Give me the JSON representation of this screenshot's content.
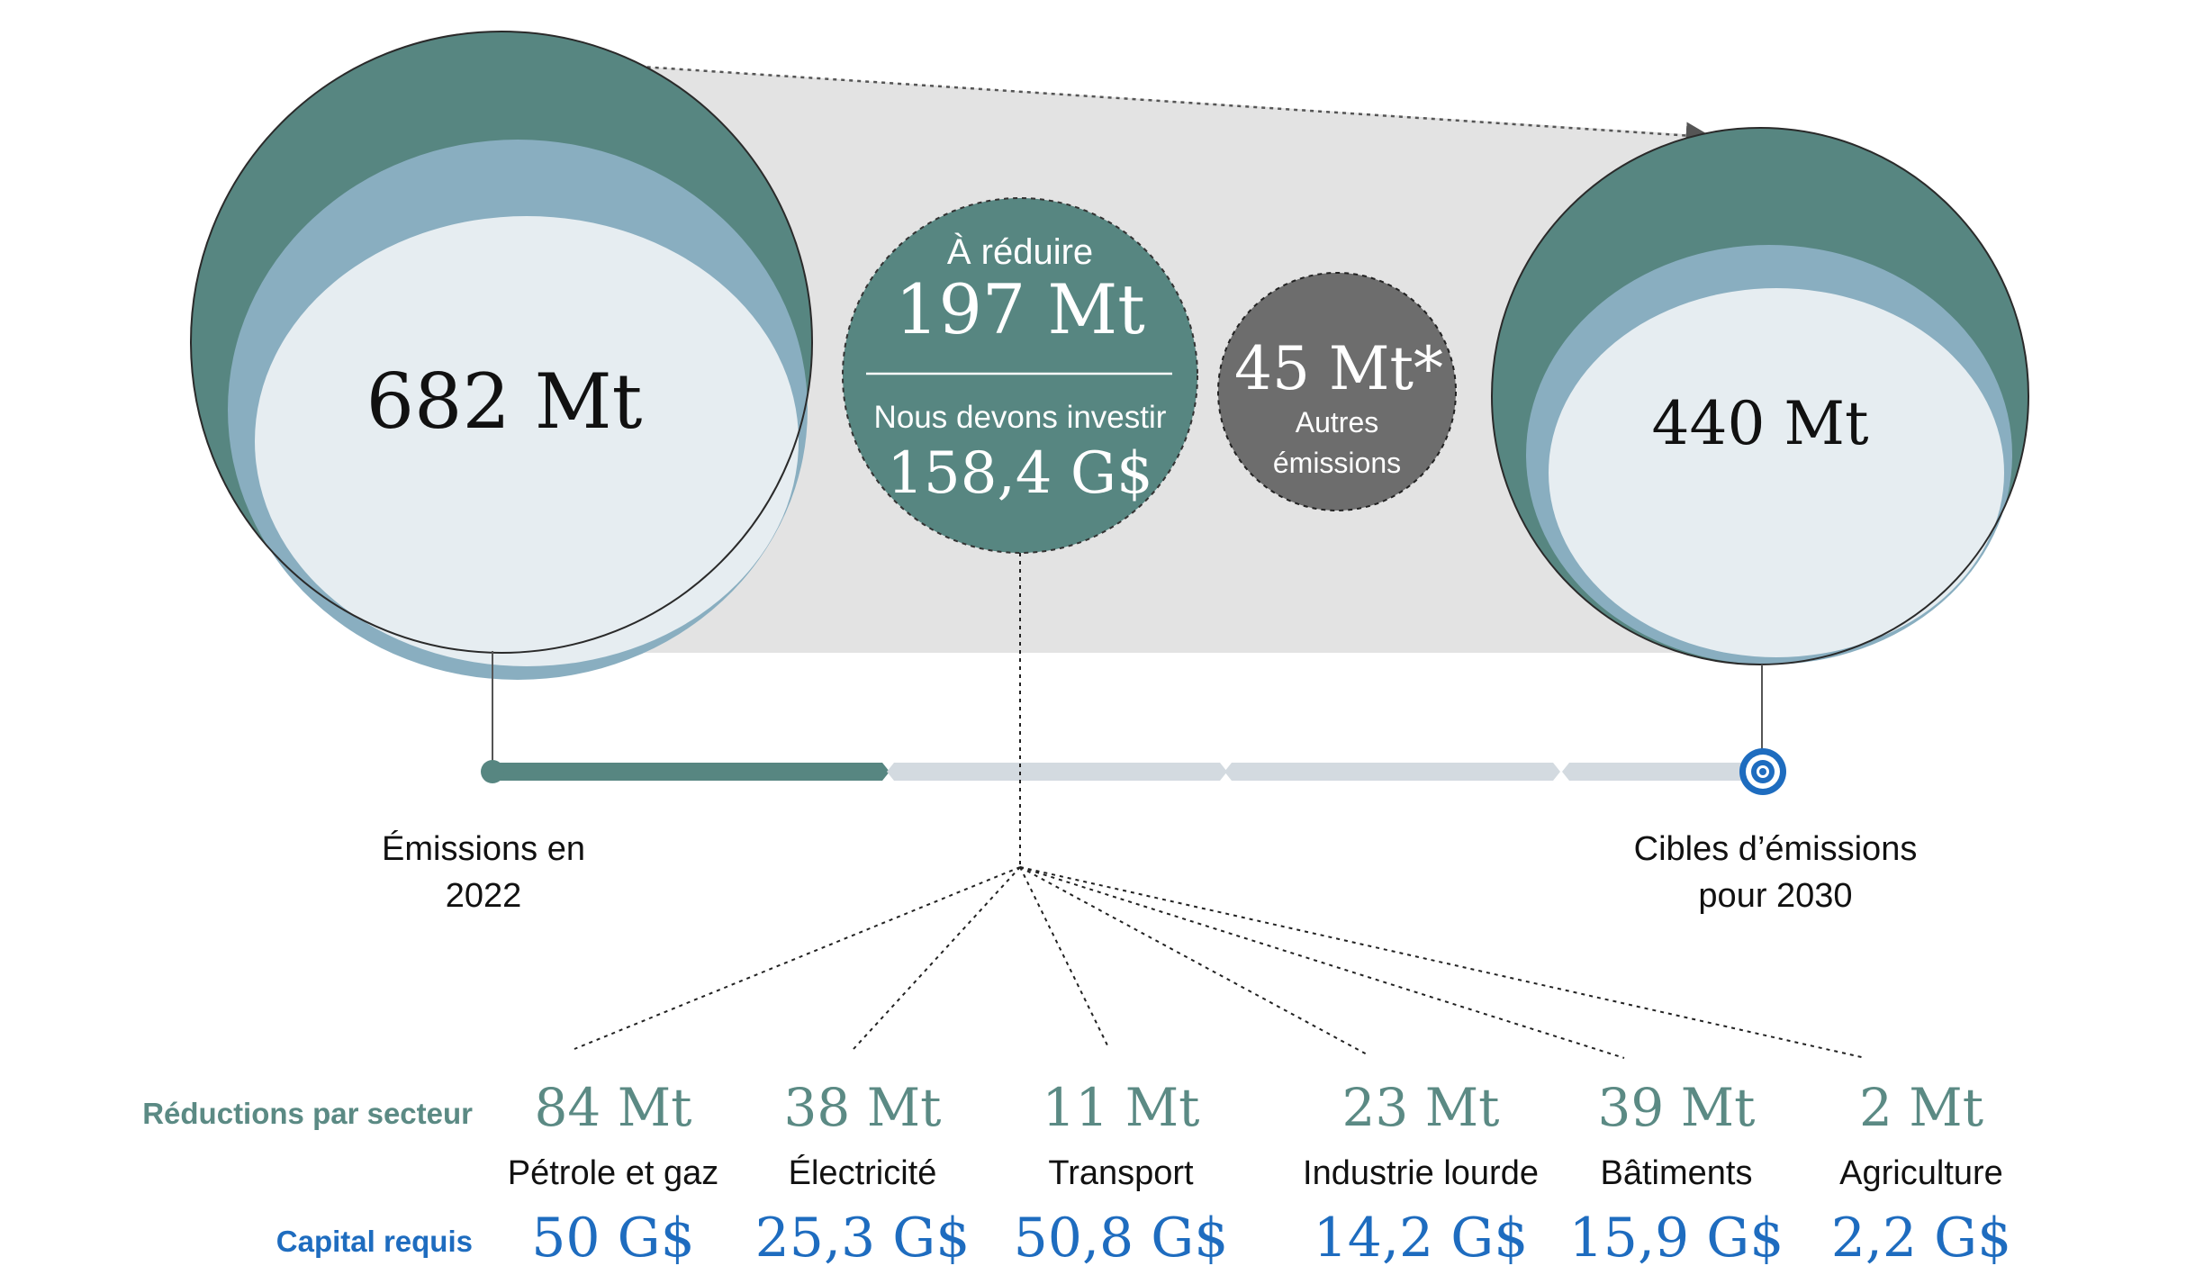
{
  "left_circle": {
    "value": "682 Mt"
  },
  "right_circle": {
    "value": "440 Mt"
  },
  "reduce_circle": {
    "heading": "À réduire",
    "value": "197 Mt",
    "invest_label": "Nous devons investir",
    "invest_value": "158,4 G$"
  },
  "other_circle": {
    "value": "45 Mt*",
    "label_line1": "Autres",
    "label_line2": "émissions"
  },
  "timeline": {
    "start_label_line1": "Émissions en",
    "start_label_line2": "2022",
    "end_label_line1": "Cibles d’émissions",
    "end_label_line2": "pour 2030"
  },
  "row_labels": {
    "reductions": "Réductions par secteur",
    "capital": "Capital requis"
  },
  "sectors": [
    {
      "name": "Pétrole et gaz",
      "reduction": "84 Mt",
      "capital": "50 G$"
    },
    {
      "name": "Électricité",
      "reduction": "38 Mt",
      "capital": "25,3 G$"
    },
    {
      "name": "Transport",
      "reduction": "11 Mt",
      "capital": "50,8 G$"
    },
    {
      "name": "Industrie lourde",
      "reduction": "23 Mt",
      "capital": "14,2 G$"
    },
    {
      "name": "Bâtiments",
      "reduction": "39 Mt",
      "capital": "15,9 G$"
    },
    {
      "name": "Agriculture",
      "reduction": "2 Mt",
      "capital": "2,2 G$"
    }
  ],
  "colors": {
    "dark_teal": "#578681",
    "mid_blue": "#89aec0",
    "pale_center": "#e6edf1",
    "gray_band": "#e3e3e3",
    "track": "#d3dae0",
    "other_circle": "#6d6d6d",
    "reduction_text": "#5b8a84",
    "capital_text": "#1e6cbf"
  }
}
